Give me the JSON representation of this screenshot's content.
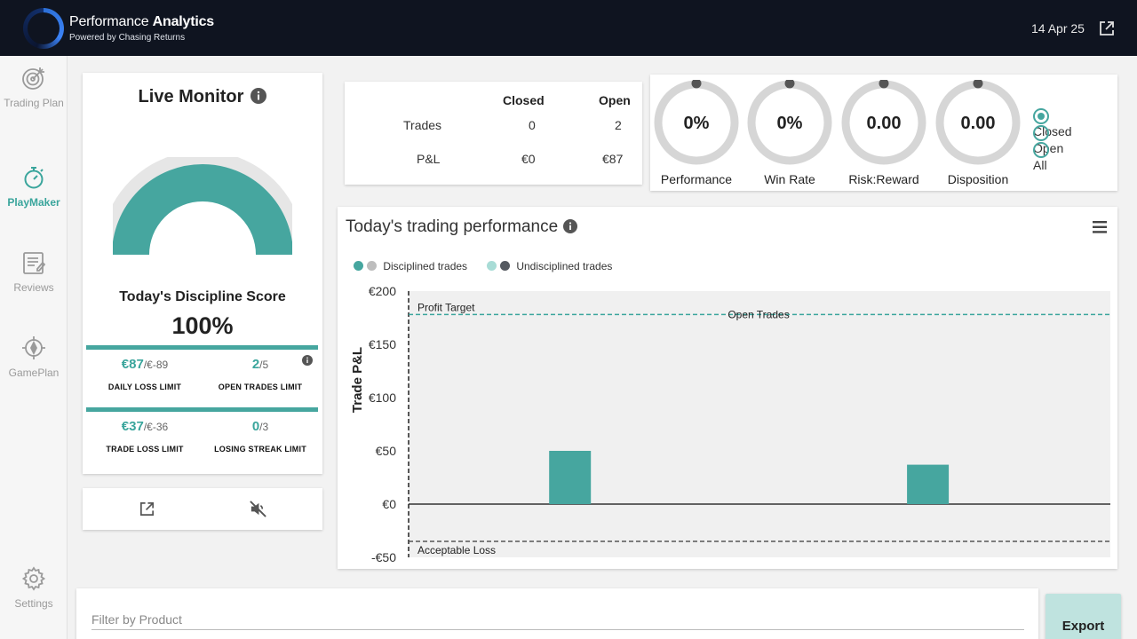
{
  "header": {
    "app_title_light": "Performance",
    "app_title_bold": "Analytics",
    "subtitle": "Powered by Chasing Returns",
    "date": "14 Apr 25"
  },
  "sidebar": {
    "items": [
      {
        "label": "Trading Plan",
        "icon": "target-icon"
      },
      {
        "label": "PlayMaker",
        "icon": "stopwatch-icon",
        "active": true
      },
      {
        "label": "Reviews",
        "icon": "notepad-icon"
      },
      {
        "label": "GamePlan",
        "icon": "compass-icon"
      },
      {
        "label": "Settings",
        "icon": "gear-icon"
      }
    ]
  },
  "live_monitor": {
    "title": "Live Monitor",
    "discipline_label": "Today's Discipline Score",
    "discipline_score": "100%",
    "gauge_fraction": 1.0,
    "limits": [
      {
        "value": "€87",
        "max": "/€-89",
        "label": "DAILY LOSS LIMIT"
      },
      {
        "value": "2",
        "max": "/5",
        "label": "OPEN TRADES LIMIT"
      },
      {
        "value": "€37",
        "max": "/€-36",
        "label": "TRADE LOSS LIMIT"
      },
      {
        "value": "0",
        "max": "/3",
        "label": "LOSING STREAK LIMIT"
      }
    ]
  },
  "summary": {
    "col_closed": "Closed",
    "col_open": "Open",
    "rows": [
      {
        "label": "Trades",
        "closed": "0",
        "open": "2"
      },
      {
        "label": "P&L",
        "closed": "€0",
        "open": "€87"
      }
    ]
  },
  "rings": [
    {
      "value": "0%",
      "label": "Performance"
    },
    {
      "value": "0%",
      "label": "Win Rate"
    },
    {
      "value": "0.00",
      "label": "Risk:Reward"
    },
    {
      "value": "0.00",
      "label": "Disposition"
    }
  ],
  "view_filter": {
    "options": [
      "Closed",
      "Open",
      "All"
    ],
    "selected": "Closed"
  },
  "chart": {
    "title": "Today's trading performance",
    "legend": [
      {
        "name": "Disciplined trades",
        "colors": [
          "#46a69f",
          "#bdbdbd"
        ]
      },
      {
        "name": "Undisciplined trades",
        "colors": [
          "#a8dcd6",
          "#555a61"
        ]
      }
    ]
  },
  "chart_data": {
    "type": "bar",
    "ylabel": "Trade P&L",
    "ylim": [
      -50,
      200
    ],
    "yticks": [
      200,
      150,
      100,
      50,
      0,
      -50
    ],
    "ytick_labels": [
      "€200",
      "€150",
      "€100",
      "€50",
      "€0",
      "-€50"
    ],
    "xlim": [
      0,
      10
    ],
    "series": [
      {
        "name": "Disciplined trades",
        "color": "#46a69f",
        "points": [
          {
            "x": 2.3,
            "y": 50
          },
          {
            "x": 7.4,
            "y": 37
          }
        ]
      }
    ],
    "annotations": [
      {
        "text": "Profit Target",
        "y": 178,
        "style": "dashed",
        "color": "#3aa59c"
      },
      {
        "text": "Acceptable Loss",
        "y": -35,
        "style": "dashed",
        "color": "#555"
      },
      {
        "text": "Open Trades",
        "y": 178
      }
    ],
    "grid": false
  },
  "filter": {
    "placeholder": "Filter by Product"
  },
  "export_label": "Export"
}
